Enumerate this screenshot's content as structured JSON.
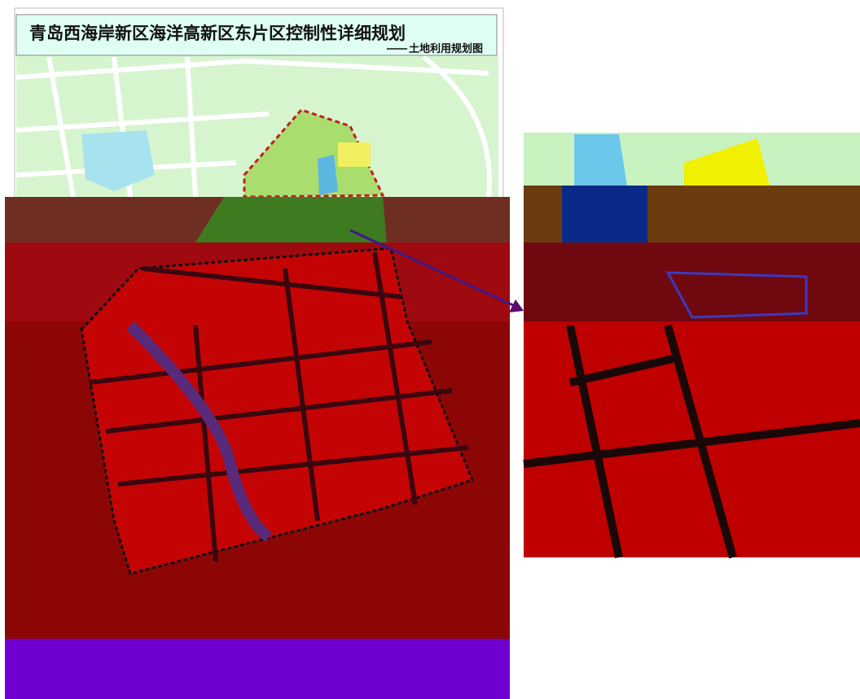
{
  "header": {
    "title": "青岛西海岸新区海洋高新区东片区控制性详细规划",
    "subtitle": "土地利用规划图"
  }
}
